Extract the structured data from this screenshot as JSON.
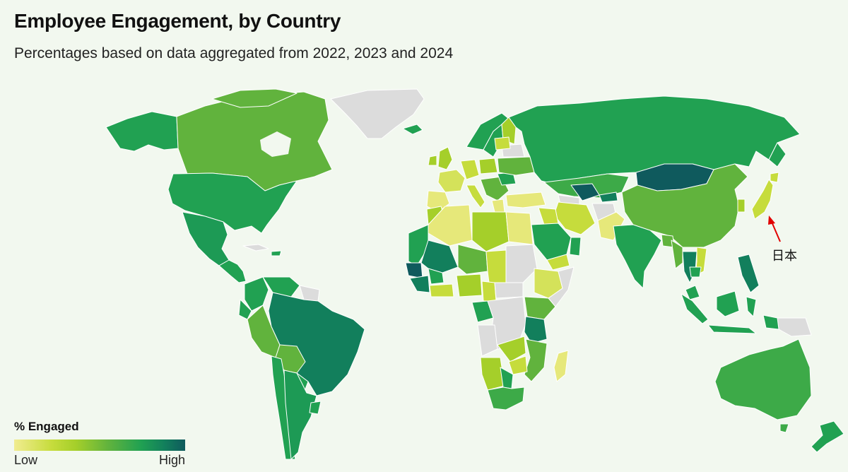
{
  "title": "Employee Engagement, by Country",
  "subtitle": "Percentages based on data aggregated from 2022, 2023 and 2024",
  "annotation": {
    "label": "日本",
    "color": "#e10000"
  },
  "legend": {
    "title": "% Engaged",
    "low_label": "Low",
    "high_label": "High",
    "colors": [
      "#f1ec90",
      "#c6dc3c",
      "#a5cf2a",
      "#61b33d",
      "#21a152",
      "#127f5c",
      "#0f5a5d"
    ]
  },
  "colors": {
    "background": "#f2f8ef",
    "no_data": "#dcdcdc",
    "border": "#ffffff"
  }
}
